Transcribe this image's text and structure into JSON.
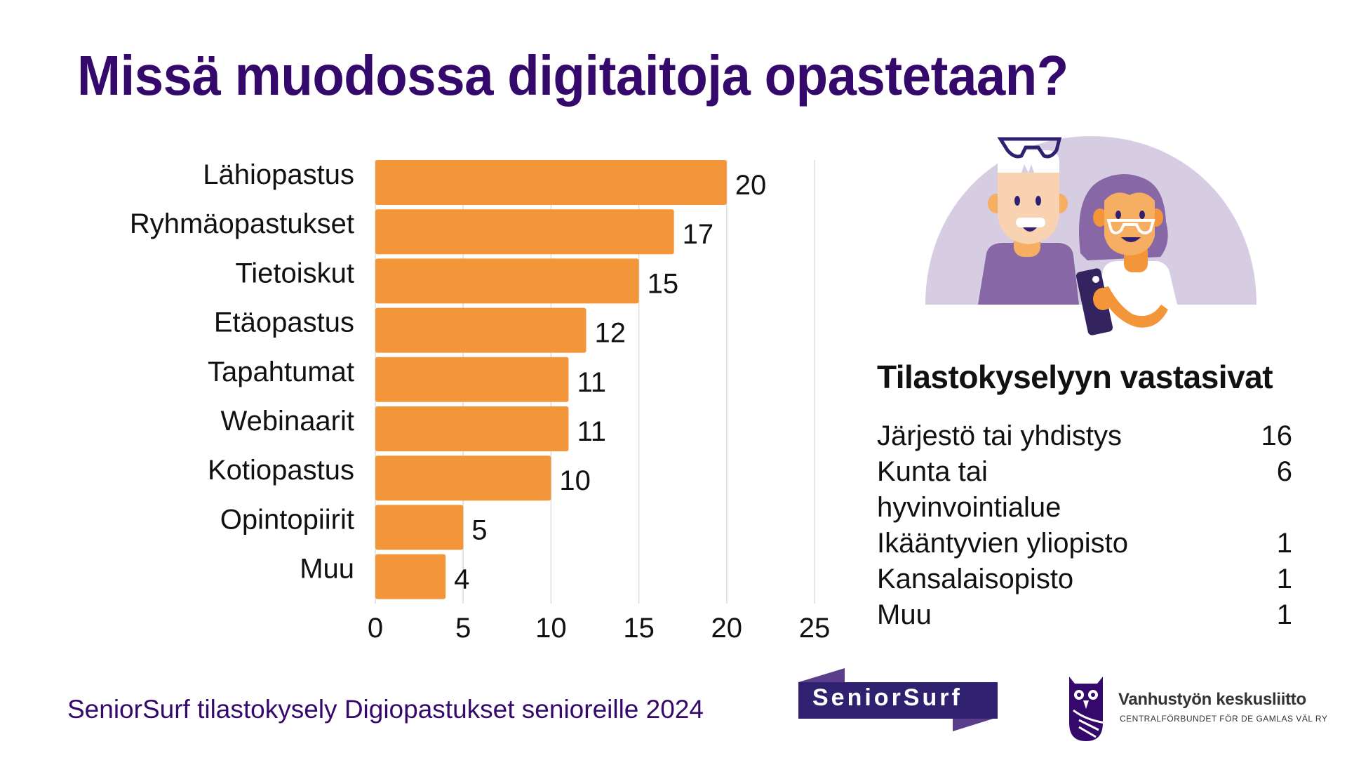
{
  "title": "Missä muodossa digitaitoja opastetaan?",
  "chart_data": {
    "type": "bar",
    "orientation": "horizontal",
    "title": "Missä muodossa digitaitoja opastetaan?",
    "categories": [
      "Lähiopastus",
      "Ryhmäopastukset",
      "Tietoiskut",
      "Etäopastus",
      "Tapahtumat",
      "Webinaarit",
      "Kotiopastus",
      "Opintopiirit",
      "Muu"
    ],
    "values": [
      20,
      17,
      15,
      12,
      11,
      11,
      10,
      5,
      4
    ],
    "data_labels": [
      "20",
      "17",
      "15",
      "12",
      "11",
      "11",
      "10",
      "5",
      "4"
    ],
    "xlabel": "",
    "ylabel": "",
    "xlim": [
      0,
      25
    ],
    "xticks": [
      0,
      5,
      10,
      15,
      20,
      25
    ],
    "xtick_labels": [
      "0",
      "5",
      "10",
      "15",
      "20",
      "25"
    ],
    "grid": true,
    "legend": "none",
    "bar_color": "#f39639",
    "gridline_color": "#dddddd"
  },
  "respondents": {
    "title": "Tilastokyselyyn vastasivat",
    "rows": [
      {
        "label": "Järjestö tai yhdistys",
        "value": "16"
      },
      {
        "label": "Kunta tai hyvinvointialue",
        "value": "6"
      },
      {
        "label": "Ikääntyvien yliopisto",
        "value": "1"
      },
      {
        "label": "Kansalaisopisto",
        "value": "1"
      },
      {
        "label": "Muu",
        "value": "1"
      }
    ]
  },
  "illustration": {
    "icon": "seniors-with-phone-illustration"
  },
  "footer": {
    "source": "SeniorSurf tilastokysely Digiopastukset senioreille 2024",
    "logo_seniorsurf": "SeniorSurf",
    "logo_vk_name": "Vanhustyön keskusliitto",
    "logo_vk_sub": "CENTRALFÖRBUNDET FÖR DE GAMLAS VÄL RY"
  },
  "colors": {
    "title": "#35096b",
    "bar": "#f39639",
    "brand_purple": "#2f2170",
    "illustration_bg": "#d6cde3"
  }
}
